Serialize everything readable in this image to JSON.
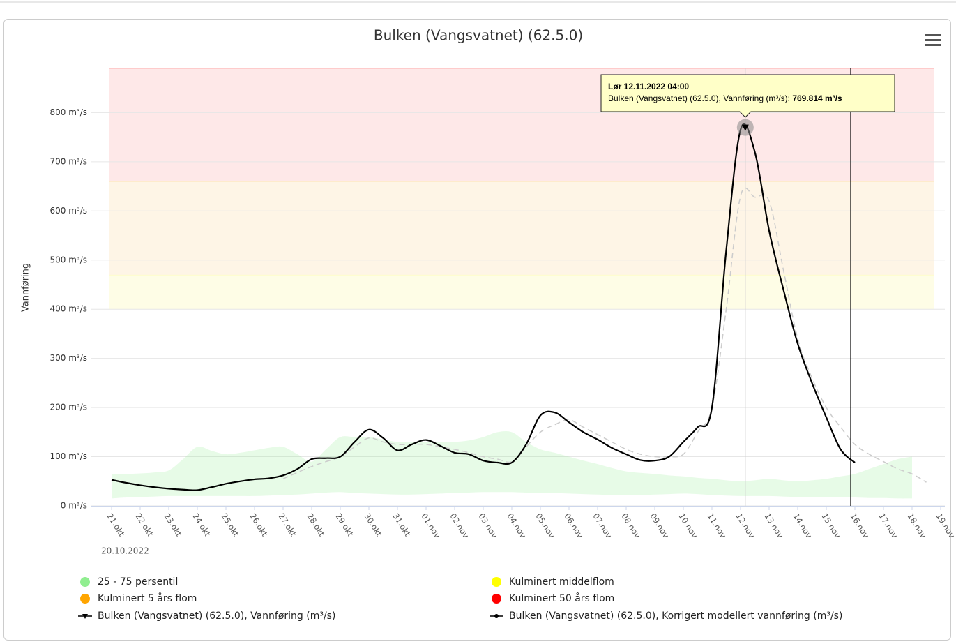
{
  "chart_data": {
    "type": "line",
    "title": "Bulken (Vangsvatnet) (62.5.0)",
    "y_label": "Vannføring",
    "x_start_label": "20.10.2022",
    "categories": [
      "21.okt",
      null,
      "22.okt",
      null,
      "23.okt",
      null,
      "24.okt",
      null,
      "25.okt",
      null,
      "26.okt",
      null,
      "27.okt",
      null,
      "28.okt",
      null,
      "29.okt",
      null,
      "30.okt",
      null,
      "31.okt",
      null,
      "01.nov",
      null,
      "02.nov",
      null,
      "03.nov",
      null,
      "04.nov",
      null,
      "05.nov",
      null,
      "06.nov",
      null,
      "07.nov",
      null,
      "08.nov",
      null,
      "09.nov",
      null,
      "10.nov",
      null,
      "11.nov",
      null,
      "12.nov",
      null,
      "13.nov",
      null,
      "14.nov",
      null,
      "15.nov",
      null,
      "16.nov",
      null,
      "17.nov",
      null,
      "18.nov",
      null,
      "19.nov"
    ],
    "ylim": [
      0,
      890
    ],
    "yticks": [
      {
        "value": 0,
        "label": "0 m³/s"
      },
      {
        "value": 100,
        "label": "100 m³/s"
      },
      {
        "value": 200,
        "label": "200 m³/s"
      },
      {
        "value": 300,
        "label": "300 m³/s"
      },
      {
        "value": 400,
        "label": "400 m³/s"
      },
      {
        "value": 500,
        "label": "500 m³/s"
      },
      {
        "value": 600,
        "label": "600 m³/s"
      },
      {
        "value": 700,
        "label": "700 m³/s"
      },
      {
        "value": 800,
        "label": "800 m³/s"
      }
    ],
    "grid": true,
    "plot_bands": [
      {
        "name": "Kulminert middelflom",
        "from": 400,
        "to": 470,
        "color": "#ffff00",
        "fill": "#fefde6"
      },
      {
        "name": "Kulminert 5 års flom",
        "from": 470,
        "to": 660,
        "color": "#ffa500",
        "fill": "#fef5e6"
      },
      {
        "name": "Kulminert 50 års flom",
        "from": 660,
        "to": 890,
        "color": "#ff0000",
        "fill": "#fee8e8"
      }
    ],
    "range_band": {
      "name": "25 - 75 persentil",
      "color": "#90ee90",
      "high": [
        65,
        65,
        66,
        68,
        72,
        95,
        120,
        112,
        105,
        108,
        113,
        118,
        120,
        105,
        90,
        115,
        140,
        140,
        140,
        135,
        130,
        130,
        130,
        130,
        130,
        133,
        140,
        150,
        150,
        130,
        115,
        108,
        100,
        92,
        85,
        77,
        70,
        67,
        65,
        62,
        60,
        57,
        55,
        52,
        50,
        52,
        55,
        52,
        50,
        52,
        55,
        60,
        65,
        75,
        85,
        95,
        100,
        null,
        null
      ],
      "low": [
        15,
        17,
        18,
        19,
        20,
        20,
        20,
        20,
        20,
        20,
        20,
        21,
        22,
        23,
        25,
        27,
        28,
        26,
        25,
        24,
        23,
        23,
        24,
        25,
        26,
        27,
        28,
        28,
        28,
        27,
        27,
        26,
        25,
        24,
        23,
        22,
        22,
        22,
        23,
        24,
        25,
        24,
        22,
        21,
        20,
        20,
        20,
        19,
        18,
        18,
        18,
        17,
        17,
        16,
        16,
        15,
        15,
        null,
        null
      ]
    },
    "series": [
      {
        "name": "Bulken (Vangsvatnet) (62.5.0), Vannføring (m³/s)",
        "color": "#000000",
        "marker": "triangle",
        "values": [
          53,
          47,
          42,
          38,
          35,
          33,
          32,
          38,
          45,
          50,
          54,
          56,
          62,
          75,
          95,
          97,
          100,
          130,
          155,
          138,
          113,
          125,
          134,
          122,
          108,
          105,
          92,
          88,
          88,
          125,
          184,
          190,
          170,
          150,
          135,
          118,
          105,
          93,
          92,
          100,
          130,
          160,
          200,
          520,
          765,
          720,
          560,
          440,
          330,
          250,
          180,
          115,
          88,
          null,
          null,
          null,
          null,
          null,
          null
        ]
      },
      {
        "name": "Bulken (Vangsvatnet) (62.5.0), Korrigert modellert vannføring (m³/s)",
        "color": "#cccccc",
        "marker": "circle",
        "values": [
          null,
          null,
          null,
          null,
          null,
          null,
          null,
          null,
          null,
          null,
          null,
          null,
          55,
          68,
          80,
          90,
          100,
          120,
          138,
          130,
          125,
          125,
          125,
          120,
          115,
          108,
          100,
          95,
          90,
          120,
          150,
          165,
          175,
          160,
          145,
          130,
          115,
          105,
          100,
          100,
          105,
          150,
          200,
          400,
          630,
          628,
          620,
          480,
          340,
          260,
          200,
          160,
          125,
          105,
          90,
          75,
          65,
          48,
          null
        ]
      }
    ],
    "tooltip": {
      "title": "Lør 12.11.2022 04:00",
      "text": "Bulken (Vangsvatnet) (62.5.0), Vannføring (m³/s): ",
      "value": 769.814,
      "value_label": "769.814 m³/s"
    }
  }
}
